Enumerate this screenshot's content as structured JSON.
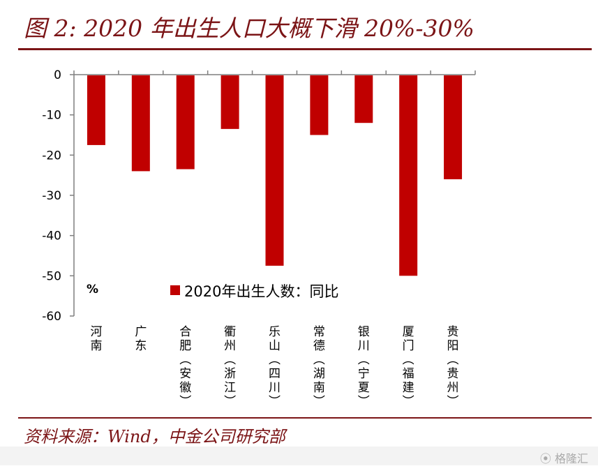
{
  "title": "图 2: 2020 年出生人口大概下滑 20%-30%",
  "source": "资料来源：Wind，中金公司研究部",
  "watermark": "⦿ 格隆汇",
  "colors": {
    "bar": "#c00000",
    "brand": "#7b1416"
  },
  "chart_data": {
    "type": "bar",
    "categories": [
      "河南",
      "广东",
      "合肥(安徽)",
      "衢州(浙江)",
      "乐山(四川)",
      "常德(湖南)",
      "银川(宁夏)",
      "厦门(福建)",
      "贵阳(贵州)"
    ],
    "category_lines": [
      [
        "河",
        "南"
      ],
      [
        "广",
        "东"
      ],
      [
        "合",
        "肥",
        "︵",
        "安",
        "徽",
        "︶"
      ],
      [
        "衢",
        "州",
        "︵",
        "浙",
        "江",
        "︶"
      ],
      [
        "乐",
        "山",
        "︵",
        "四",
        "川",
        "︶"
      ],
      [
        "常",
        "德",
        "︵",
        "湖",
        "南",
        "︶"
      ],
      [
        "银",
        "川",
        "︵",
        "宁",
        "夏",
        "︶"
      ],
      [
        "厦",
        "门",
        "︵",
        "福",
        "建",
        "︶"
      ],
      [
        "贵",
        "阳",
        "︵",
        "贵",
        "州",
        "︶"
      ]
    ],
    "series": [
      {
        "name": "2020年出生人数：同比",
        "values": [
          -17.5,
          -24,
          -23.5,
          -13.5,
          -47.5,
          -15,
          -12,
          -50,
          -26
        ]
      }
    ],
    "yticks": [
      "0",
      "-10",
      "-20",
      "-30",
      "-40",
      "-50",
      "-60"
    ],
    "ylim": [
      -60,
      0
    ],
    "ylabel": "%",
    "legend_position": "lower-left, inside plot",
    "grid": false
  }
}
